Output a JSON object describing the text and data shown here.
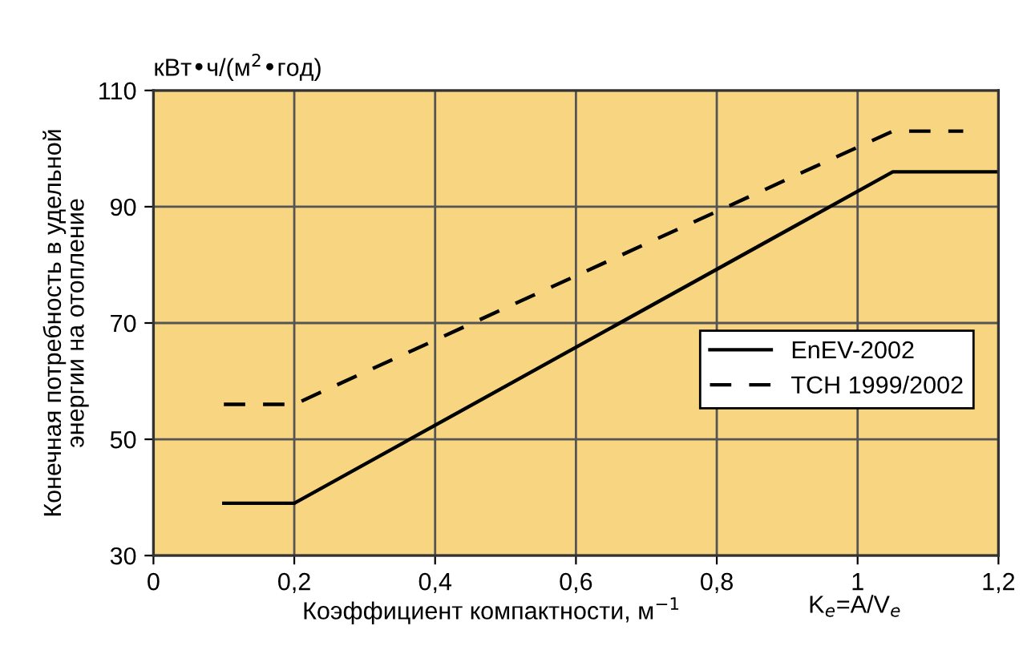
{
  "chart_data": {
    "type": "line",
    "ylabel": "Конечная потребность в удельной\nэнергии на отопление",
    "xlabel": "Коэффициент компактности, м$^{−1}$",
    "annotations": [
      "кВт•ч/(м$^{2}$•год)",
      "K$_{e}$=A/V$_{e}$"
    ],
    "series": [
      {
        "name": "EnEV-2002",
        "color": "#000000",
        "line_style": "solid",
        "x": [
          0.1,
          0.2,
          1.05,
          1.2
        ],
        "values": [
          39,
          39,
          96,
          96
        ]
      },
      {
        "name": "TCH 1999/2002",
        "color": "#000000",
        "line_style": "dashed",
        "x": [
          0.1,
          0.2,
          1.05,
          1.15
        ],
        "values": [
          56,
          56,
          103,
          103
        ]
      }
    ],
    "xlim": [
      0,
      1.2
    ],
    "ylim": [
      30,
      110
    ],
    "xticks": [
      0,
      {
        "value": 0.2,
        "label": "0,2"
      },
      {
        "value": 0.4,
        "label": "0,4"
      },
      {
        "value": 0.6,
        "label": "0,6"
      },
      {
        "value": 0.8,
        "label": "0,8"
      },
      1,
      {
        "value": 1.2,
        "label": "1,2"
      }
    ],
    "yticks": [
      30,
      50,
      70,
      90,
      110
    ],
    "grid": true,
    "legend": "right",
    "marker": "none"
  }
}
